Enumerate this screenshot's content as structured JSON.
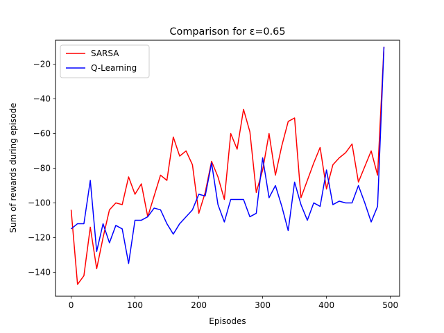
{
  "chart_data": {
    "type": "line",
    "title": "Comparison for ε=0.65",
    "xlabel": "Episodes",
    "ylabel": "Sum of rewards during episode",
    "xlim": [
      -24.5,
      514.5
    ],
    "ylim": [
      -153.85,
      -6.15
    ],
    "x_ticks": [
      0,
      100,
      200,
      300,
      400,
      500
    ],
    "y_ticks": [
      -140,
      -120,
      -100,
      -80,
      -60,
      -40,
      -20
    ],
    "grid": false,
    "legend_position": "top-left",
    "x": [
      0,
      10,
      20,
      30,
      40,
      50,
      60,
      70,
      80,
      90,
      100,
      110,
      120,
      130,
      140,
      150,
      160,
      170,
      180,
      190,
      200,
      210,
      220,
      230,
      240,
      250,
      260,
      270,
      280,
      290,
      300,
      310,
      320,
      330,
      340,
      350,
      360,
      370,
      380,
      390,
      400,
      410,
      420,
      430,
      440,
      450,
      460,
      470,
      480,
      490
    ],
    "series": [
      {
        "name": "SARSA",
        "color": "#ff0000",
        "values": [
          -104,
          -147,
          -142,
          -114,
          -138,
          -120,
          -104,
          -100,
          -101,
          -85,
          -95,
          -89,
          -108,
          -96,
          -84,
          -87,
          -62,
          -73,
          -70,
          -78,
          -106,
          -94,
          -76,
          -85,
          -98,
          -60,
          -69,
          -46,
          -59,
          -94,
          -81,
          -60,
          -84,
          -67,
          -53,
          -51,
          -97,
          -87,
          -77,
          -68,
          -92,
          -78,
          -74,
          -71,
          -66,
          -88,
          -79,
          -70,
          -84,
          -10
        ]
      },
      {
        "name": "Q-Learning",
        "color": "#0000ff",
        "values": [
          -115,
          -112,
          -112,
          -87,
          -128,
          -112,
          -123,
          -113,
          -115,
          -135,
          -110,
          -110,
          -108,
          -103,
          -104,
          -112,
          -118,
          -112,
          -108,
          -104,
          -95,
          -96,
          -77,
          -101,
          -111,
          -98,
          -98,
          -98,
          -108,
          -106,
          -74,
          -97,
          -90,
          -102,
          -116,
          -88,
          -101,
          -110,
          -100,
          -102,
          -81,
          -101,
          -99,
          -100,
          -100,
          -90,
          -100,
          -111,
          -102,
          -10
        ]
      }
    ]
  }
}
